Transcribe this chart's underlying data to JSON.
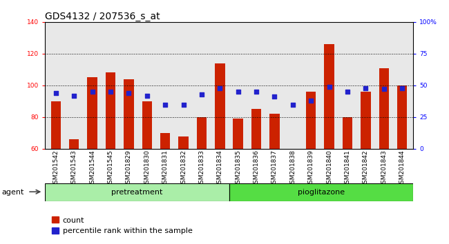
{
  "title": "GDS4132 / 207536_s_at",
  "samples": [
    "GSM201542",
    "GSM201543",
    "GSM201544",
    "GSM201545",
    "GSM201829",
    "GSM201830",
    "GSM201831",
    "GSM201832",
    "GSM201833",
    "GSM201834",
    "GSM201835",
    "GSM201836",
    "GSM201837",
    "GSM201838",
    "GSM201839",
    "GSM201840",
    "GSM201841",
    "GSM201842",
    "GSM201843",
    "GSM201844"
  ],
  "counts": [
    90,
    66,
    105,
    108,
    104,
    90,
    70,
    68,
    80,
    114,
    79,
    85,
    82,
    60,
    96,
    126,
    80,
    96,
    111,
    100
  ],
  "percentile_ranks": [
    44,
    42,
    45,
    45,
    44,
    42,
    35,
    35,
    43,
    48,
    45,
    45,
    41,
    35,
    38,
    49,
    45,
    48,
    47,
    48
  ],
  "pretreatment_count": 10,
  "pioglitazone_count": 10,
  "ylim_left": [
    60,
    140
  ],
  "ylim_right": [
    0,
    100
  ],
  "yticks_left": [
    60,
    80,
    100,
    120,
    140
  ],
  "yticks_right": [
    0,
    25,
    50,
    75,
    100
  ],
  "ytick_labels_right": [
    "0",
    "25",
    "50",
    "75",
    "100%"
  ],
  "bar_color": "#cc2200",
  "dot_color": "#2222cc",
  "pretreatment_color": "#aaeea8",
  "pioglitazone_color": "#55dd44",
  "agent_label": "agent",
  "pretreatment_label": "pretreatment",
  "pioglitazone_label": "pioglitazone",
  "legend_count_label": "count",
  "legend_pct_label": "percentile rank within the sample",
  "bg_plot": "#e8e8e8",
  "title_fontsize": 10,
  "tick_fontsize": 6.5,
  "label_fontsize": 8
}
